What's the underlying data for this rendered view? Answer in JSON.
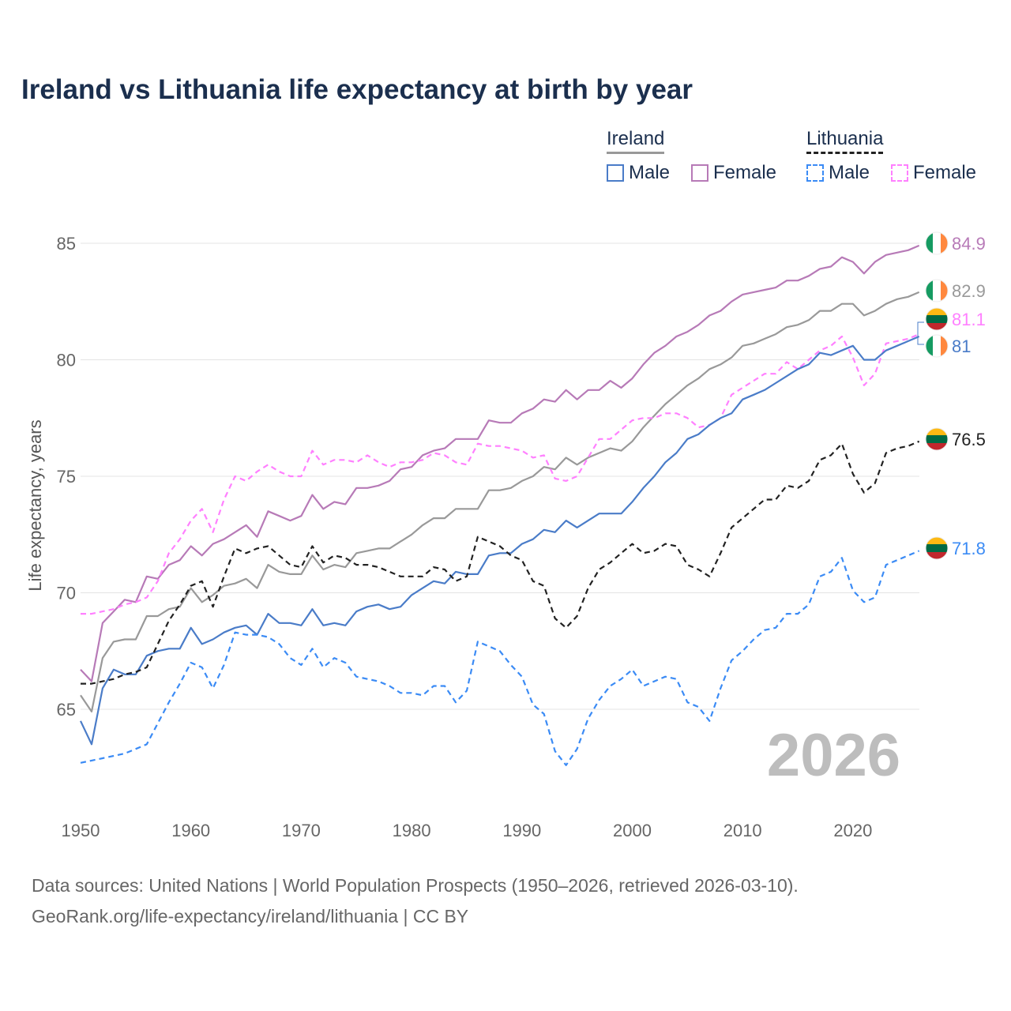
{
  "chart_data": {
    "type": "line",
    "title": "Ireland vs Lithuania life expectancy at birth by year",
    "ylabel": "Life expectancy, years",
    "xlabel": "",
    "ylim": [
      62,
      86
    ],
    "xlim": [
      1950,
      2026
    ],
    "xticks": [
      "1950",
      "1960",
      "1970",
      "1980",
      "1990",
      "2000",
      "2010",
      "2020"
    ],
    "yticks": [
      "65",
      "70",
      "75",
      "80",
      "85"
    ],
    "grid": true,
    "current_year": "2026",
    "legend": {
      "placement": "top-right",
      "groups": [
        {
          "name": "Ireland",
          "items": [
            "Male",
            "Female"
          ]
        },
        {
          "name": "Lithuania",
          "items": [
            "Male",
            "Female"
          ]
        }
      ]
    },
    "x_start": 1950,
    "series": [
      {
        "name": "Ireland Female",
        "color": "#b77ab7",
        "dash": false,
        "end_label": "84.9",
        "flag": "ireland",
        "values": [
          66.7,
          66.2,
          68.7,
          69.2,
          69.7,
          69.6,
          70.7,
          70.6,
          71.2,
          71.4,
          72.0,
          71.6,
          72.1,
          72.3,
          72.6,
          72.9,
          72.4,
          73.5,
          73.3,
          73.1,
          73.3,
          74.2,
          73.6,
          73.9,
          73.8,
          74.5,
          74.5,
          74.6,
          74.8,
          75.3,
          75.4,
          75.9,
          76.1,
          76.2,
          76.6,
          76.6,
          76.6,
          77.4,
          77.3,
          77.3,
          77.7,
          77.9,
          78.3,
          78.2,
          78.7,
          78.3,
          78.7,
          78.7,
          79.1,
          78.8,
          79.2,
          79.8,
          80.3,
          80.6,
          81.0,
          81.2,
          81.5,
          81.9,
          82.1,
          82.5,
          82.8,
          82.9,
          83.0,
          83.1,
          83.4,
          83.4,
          83.6,
          83.9,
          84.0,
          84.4,
          84.2,
          83.7,
          84.2,
          84.5,
          84.6,
          84.7,
          84.9
        ]
      },
      {
        "name": "Ireland Total",
        "color": "#999999",
        "dash": false,
        "end_label": "82.9",
        "flag": "ireland",
        "values": [
          65.6,
          64.9,
          67.2,
          67.9,
          68.0,
          68.0,
          69.0,
          69.0,
          69.3,
          69.4,
          70.2,
          69.6,
          69.9,
          70.3,
          70.4,
          70.6,
          70.2,
          71.2,
          70.9,
          70.8,
          70.8,
          71.6,
          71.0,
          71.2,
          71.1,
          71.7,
          71.8,
          71.9,
          71.9,
          72.2,
          72.5,
          72.9,
          73.2,
          73.2,
          73.6,
          73.6,
          73.6,
          74.4,
          74.4,
          74.5,
          74.8,
          75.0,
          75.4,
          75.3,
          75.8,
          75.5,
          75.8,
          76.0,
          76.2,
          76.1,
          76.5,
          77.1,
          77.6,
          78.1,
          78.5,
          78.9,
          79.2,
          79.6,
          79.8,
          80.1,
          80.6,
          80.7,
          80.9,
          81.1,
          81.4,
          81.5,
          81.7,
          82.1,
          82.1,
          82.4,
          82.4,
          81.9,
          82.1,
          82.4,
          82.6,
          82.7,
          82.9
        ]
      },
      {
        "name": "Lithuania Female",
        "color": "#ff80ff",
        "dash": true,
        "end_label": "81.1",
        "flag": "lithuania",
        "values": [
          69.1,
          69.1,
          69.2,
          69.3,
          69.5,
          69.6,
          69.8,
          70.5,
          71.7,
          72.3,
          73.1,
          73.6,
          72.6,
          74.0,
          75.0,
          74.8,
          75.2,
          75.5,
          75.2,
          75.0,
          75.0,
          76.1,
          75.5,
          75.7,
          75.7,
          75.6,
          75.9,
          75.6,
          75.4,
          75.6,
          75.6,
          75.7,
          76.0,
          75.9,
          75.6,
          75.5,
          76.4,
          76.3,
          76.3,
          76.2,
          76.1,
          75.8,
          75.9,
          74.9,
          74.8,
          75.0,
          75.8,
          76.6,
          76.6,
          77.0,
          77.4,
          77.5,
          77.5,
          77.7,
          77.7,
          77.5,
          77.1,
          77.2,
          77.5,
          78.5,
          78.8,
          79.1,
          79.4,
          79.4,
          79.9,
          79.6,
          80.0,
          80.4,
          80.6,
          81.0,
          80.1,
          78.9,
          79.4,
          80.7,
          80.8,
          80.9,
          81.1
        ]
      },
      {
        "name": "Ireland Male",
        "color": "#4a7cc8",
        "dash": false,
        "end_label": "81",
        "flag": "ireland",
        "values": [
          64.5,
          63.5,
          65.9,
          66.7,
          66.5,
          66.5,
          67.3,
          67.5,
          67.6,
          67.6,
          68.5,
          67.8,
          68.0,
          68.3,
          68.5,
          68.6,
          68.2,
          69.1,
          68.7,
          68.7,
          68.6,
          69.3,
          68.6,
          68.7,
          68.6,
          69.2,
          69.4,
          69.5,
          69.3,
          69.4,
          69.9,
          70.2,
          70.5,
          70.4,
          70.9,
          70.8,
          70.8,
          71.6,
          71.7,
          71.7,
          72.1,
          72.3,
          72.7,
          72.6,
          73.1,
          72.8,
          73.1,
          73.4,
          73.4,
          73.4,
          73.9,
          74.5,
          75.0,
          75.6,
          76.0,
          76.6,
          76.8,
          77.2,
          77.5,
          77.7,
          78.3,
          78.5,
          78.7,
          79.0,
          79.3,
          79.6,
          79.8,
          80.3,
          80.2,
          80.4,
          80.6,
          80.0,
          80.0,
          80.4,
          80.6,
          80.8,
          81.0
        ]
      },
      {
        "name": "Lithuania Total",
        "color": "#222222",
        "dash": true,
        "end_label": "76.5",
        "flag": "lithuania",
        "values": [
          66.1,
          66.1,
          66.2,
          66.3,
          66.5,
          66.6,
          66.8,
          67.8,
          68.8,
          69.5,
          70.3,
          70.5,
          69.4,
          70.7,
          71.9,
          71.7,
          71.9,
          72.0,
          71.6,
          71.2,
          71.1,
          72.0,
          71.3,
          71.6,
          71.5,
          71.2,
          71.2,
          71.1,
          70.9,
          70.7,
          70.7,
          70.7,
          71.1,
          71.0,
          70.5,
          70.7,
          72.4,
          72.2,
          72.0,
          71.6,
          71.4,
          70.5,
          70.3,
          68.9,
          68.5,
          69.0,
          70.2,
          71.0,
          71.3,
          71.7,
          72.1,
          71.7,
          71.8,
          72.1,
          72.0,
          71.2,
          71.0,
          70.7,
          71.7,
          72.8,
          73.2,
          73.6,
          74.0,
          74.0,
          74.6,
          74.5,
          74.8,
          75.7,
          75.9,
          76.4,
          75.1,
          74.3,
          74.7,
          76.0,
          76.2,
          76.3,
          76.5
        ]
      },
      {
        "name": "Lithuania Male",
        "color": "#3b8bf5",
        "dash": true,
        "end_label": "71.8",
        "flag": "lithuania",
        "values": [
          62.7,
          62.8,
          62.9,
          63.0,
          63.1,
          63.3,
          63.5,
          64.4,
          65.3,
          66.1,
          67.0,
          66.8,
          65.9,
          66.9,
          68.3,
          68.2,
          68.2,
          68.1,
          67.8,
          67.2,
          66.9,
          67.6,
          66.8,
          67.2,
          67.0,
          66.4,
          66.3,
          66.2,
          66.0,
          65.7,
          65.7,
          65.6,
          66.0,
          66.0,
          65.3,
          65.8,
          67.9,
          67.7,
          67.5,
          66.9,
          66.4,
          65.2,
          64.8,
          63.2,
          62.6,
          63.3,
          64.6,
          65.4,
          66.0,
          66.3,
          66.7,
          66.0,
          66.2,
          66.4,
          66.3,
          65.3,
          65.1,
          64.5,
          65.9,
          67.1,
          67.5,
          68.0,
          68.4,
          68.5,
          69.1,
          69.1,
          69.5,
          70.7,
          70.9,
          71.5,
          70.1,
          69.6,
          69.8,
          71.2,
          71.4,
          71.6,
          71.8
        ]
      }
    ]
  },
  "legend": {
    "ireland": "Ireland",
    "lithuania": "Lithuania",
    "male": "Male",
    "female": "Female"
  },
  "source": {
    "line1": "Data sources: United Nations | World Population Prospects (1950–2026, retrieved 2026-03-10).",
    "line2": "GeoRank.org/life-expectancy/ireland/lithuania | CC BY"
  }
}
